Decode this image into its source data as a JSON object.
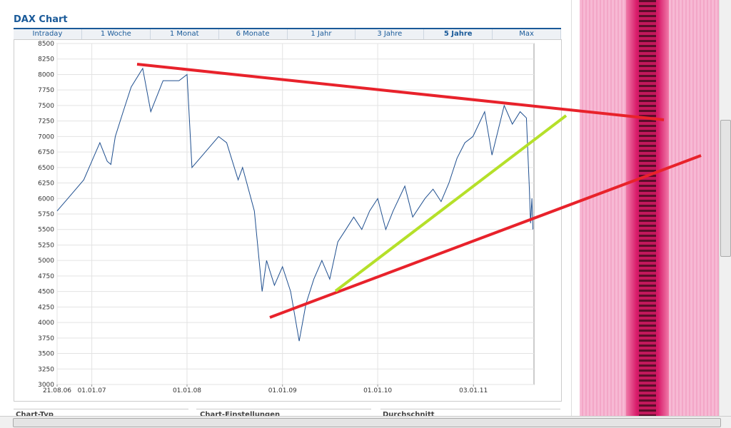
{
  "header": {
    "title": "DAX Chart"
  },
  "tabs": [
    "Intraday",
    "1 Woche",
    "1 Monat",
    "6 Monate",
    "1 Jahr",
    "3 Jahre",
    "5 Jahre",
    "Max"
  ],
  "sections": [
    "Chart-Typ",
    "Chart-Einstellungen",
    "Durchschnitt"
  ],
  "chart_data": {
    "type": "line",
    "color": "#1f4f8f",
    "grid": true,
    "x": [
      "21.08.06",
      "01.10.06",
      "01.12.06",
      "01.01.07",
      "01.02.07",
      "01.03.07",
      "15.03.07",
      "01.04.07",
      "01.05.07",
      "01.06.07",
      "15.07.07",
      "15.08.07",
      "01.10.07",
      "01.11.07",
      "01.12.07",
      "01.01.08",
      "20.01.08",
      "01.03.08",
      "01.05.08",
      "01.06.08",
      "15.07.08",
      "01.08.08",
      "15.09.08",
      "15.10.08",
      "01.11.08",
      "01.12.08",
      "01.01.09",
      "01.02.09",
      "06.03.09",
      "01.04.09",
      "01.05.09",
      "01.06.09",
      "01.07.09",
      "01.08.09",
      "01.09.09",
      "01.10.09",
      "01.11.09",
      "01.12.09",
      "01.01.10",
      "01.02.10",
      "01.03.10",
      "15.04.10",
      "15.05.10",
      "01.07.10",
      "01.08.10",
      "01.09.10",
      "01.10.10",
      "01.11.10",
      "01.12.10",
      "01.01.11",
      "15.02.11",
      "15.03.11",
      "01.05.11",
      "01.06.11",
      "01.07.11",
      "25.07.11",
      "05.08.11",
      "10.08.11",
      "15.08.11",
      "19.08.11"
    ],
    "values": [
      5800,
      6000,
      6300,
      6600,
      6900,
      6600,
      6550,
      7000,
      7400,
      7800,
      8100,
      7400,
      7900,
      7900,
      7900,
      8000,
      6500,
      6700,
      7000,
      6900,
      6300,
      6500,
      5800,
      4500,
      5000,
      4600,
      4900,
      4500,
      3700,
      4300,
      4700,
      5000,
      4700,
      5300,
      5500,
      5700,
      5500,
      5800,
      6000,
      5500,
      5800,
      6200,
      5700,
      6000,
      6150,
      5950,
      6250,
      6650,
      6900,
      7000,
      7400,
      6700,
      7500,
      7200,
      7400,
      7300,
      6200,
      5600,
      6000,
      5500
    ],
    "xlim": [
      "21.08.06",
      "23.08.11"
    ],
    "xticks": [
      "21.08.06",
      "01.01.07",
      "01.01.08",
      "01.01.09",
      "01.01.10",
      "03.01.11"
    ],
    "ylim": [
      3000,
      8500
    ],
    "yticks": [
      3000,
      3250,
      3500,
      3750,
      4000,
      4250,
      4500,
      4750,
      5000,
      5250,
      5500,
      5750,
      6000,
      6250,
      6500,
      6750,
      7000,
      7250,
      7500,
      7750,
      8000,
      8250,
      8500
    ]
  }
}
